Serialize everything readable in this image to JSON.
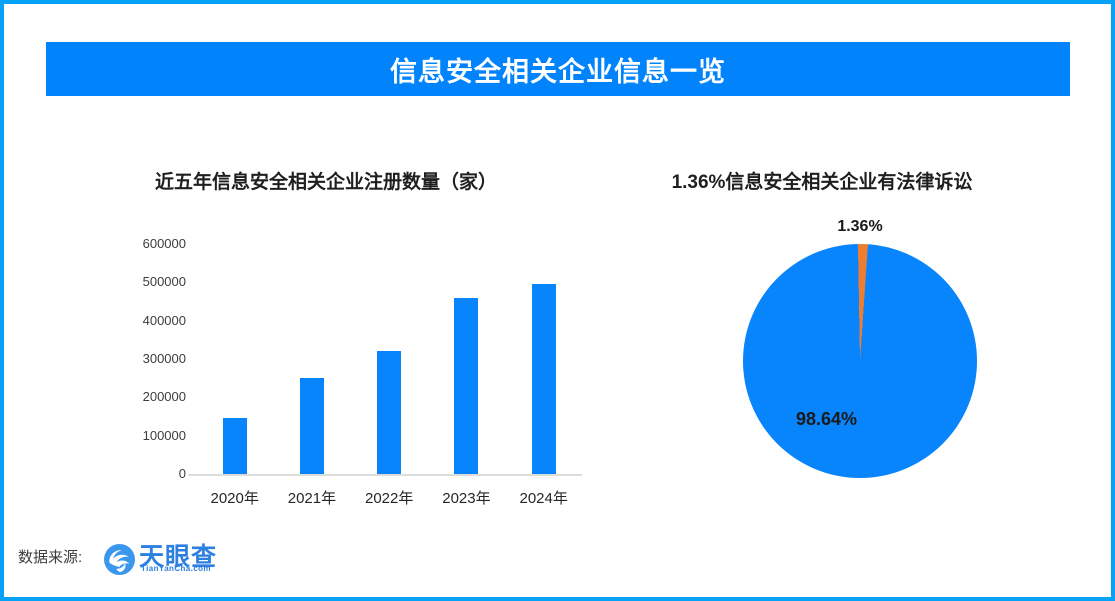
{
  "banner": {
    "title": "信息安全相关企业信息一览",
    "bg_color": "#0183FB",
    "text_color": "#FFFFFF"
  },
  "frame": {
    "border_color": "#06A2F8",
    "background": "#FFFFFF"
  },
  "footer": {
    "source_label": "数据来源:",
    "brand_name": "天眼查",
    "brand_domain": "TianYanCha.com",
    "brand_color": "#2E80E0",
    "logo_icon": "tianyancha-eye-swirl"
  },
  "chart_data": [
    {
      "type": "bar",
      "title": "近五年信息安全相关企业注册数量（家）",
      "categories": [
        "2020年",
        "2021年",
        "2022年",
        "2023年",
        "2024年"
      ],
      "values": [
        145000,
        250000,
        320000,
        460000,
        495000
      ],
      "xlabel": "",
      "ylabel": "",
      "ylim": [
        0,
        600000
      ],
      "yticks": [
        0,
        100000,
        200000,
        300000,
        400000,
        500000,
        600000
      ],
      "grid": false,
      "legend": false,
      "bar_color": "#0884FC",
      "axis_line_color": "#DCDCDC"
    },
    {
      "type": "pie",
      "title": "1.36%信息安全相关企业有法律诉讼",
      "slices": [
        {
          "label": "1.36%",
          "value": 1.36,
          "color": "#ED7D31",
          "label_position": "outside-top"
        },
        {
          "label": "98.64%",
          "value": 98.64,
          "color": "#0884FC",
          "label_position": "inside"
        }
      ],
      "start_angle_deg": -1,
      "direction": "clockwise",
      "legend": false
    }
  ]
}
